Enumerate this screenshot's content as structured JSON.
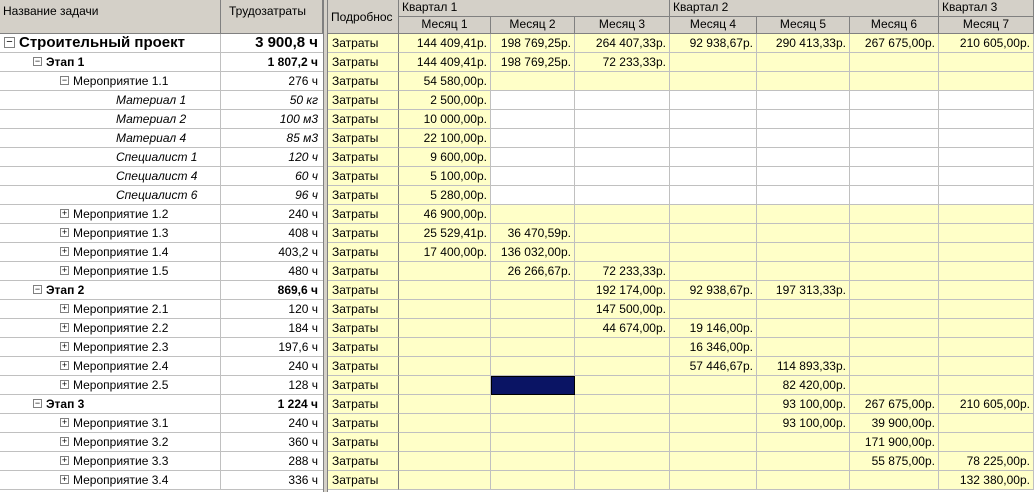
{
  "left_header": {
    "task_name": "Название задачи",
    "work": "Трудозатраты"
  },
  "right_header": {
    "details": "Подробнос",
    "quarters": [
      "Квартал 1",
      "Квартал 2",
      "Квартал 3"
    ],
    "months": [
      "Месяц 1",
      "Месяц 2",
      "Месяц 3",
      "Месяц 4",
      "Месяц 5",
      "Месяц 6",
      "Месяц 7"
    ]
  },
  "rows": [
    {
      "type": "proj",
      "toggle": "−",
      "name": "Строительный проект",
      "work": "3 900,8 ч",
      "detail": "Затраты",
      "values": [
        "144 409,41р.",
        "198 769,25р.",
        "264 407,33р.",
        "92 938,67р.",
        "290 413,33р.",
        "267 675,00р.",
        "210 605,00р."
      ]
    },
    {
      "type": "stage",
      "toggle": "−",
      "name": "Этап 1",
      "work": "1 807,2 ч",
      "detail": "Затраты",
      "values": [
        "144 409,41р.",
        "198 769,25р.",
        "72 233,33р.",
        "",
        "",
        "",
        ""
      ]
    },
    {
      "type": "act",
      "toggle": "−",
      "name": "Мероприятие 1.1",
      "work": "276 ч",
      "detail": "Затраты",
      "values": [
        "54 580,00р.",
        "",
        "",
        "",
        "",
        "",
        ""
      ]
    },
    {
      "type": "res",
      "toggle": "",
      "name": "Материал 1",
      "work": "50 кг",
      "detail": "Затраты",
      "values": [
        "2 500,00р.",
        "",
        "",
        "",
        "",
        "",
        ""
      ]
    },
    {
      "type": "res",
      "toggle": "",
      "name": "Материал 2",
      "work": "100 м3",
      "detail": "Затраты",
      "values": [
        "10 000,00р.",
        "",
        "",
        "",
        "",
        "",
        ""
      ]
    },
    {
      "type": "res",
      "toggle": "",
      "name": "Материал 4",
      "work": "85 м3",
      "detail": "Затраты",
      "values": [
        "22 100,00р.",
        "",
        "",
        "",
        "",
        "",
        ""
      ]
    },
    {
      "type": "res",
      "toggle": "",
      "name": "Специалист 1",
      "work": "120 ч",
      "detail": "Затраты",
      "values": [
        "9 600,00р.",
        "",
        "",
        "",
        "",
        "",
        ""
      ]
    },
    {
      "type": "res",
      "toggle": "",
      "name": "Специалист 4",
      "work": "60 ч",
      "detail": "Затраты",
      "values": [
        "5 100,00р.",
        "",
        "",
        "",
        "",
        "",
        ""
      ]
    },
    {
      "type": "res",
      "toggle": "",
      "name": "Специалист 6",
      "work": "96 ч",
      "detail": "Затраты",
      "values": [
        "5 280,00р.",
        "",
        "",
        "",
        "",
        "",
        ""
      ]
    },
    {
      "type": "act",
      "toggle": "+",
      "name": "Мероприятие 1.2",
      "work": "240 ч",
      "detail": "Затраты",
      "values": [
        "46 900,00р.",
        "",
        "",
        "",
        "",
        "",
        ""
      ]
    },
    {
      "type": "act",
      "toggle": "+",
      "name": "Мероприятие 1.3",
      "work": "408 ч",
      "detail": "Затраты",
      "values": [
        "25 529,41р.",
        "36 470,59р.",
        "",
        "",
        "",
        "",
        ""
      ]
    },
    {
      "type": "act",
      "toggle": "+",
      "name": "Мероприятие 1.4",
      "work": "403,2 ч",
      "detail": "Затраты",
      "values": [
        "17 400,00р.",
        "136 032,00р.",
        "",
        "",
        "",
        "",
        ""
      ]
    },
    {
      "type": "act",
      "toggle": "+",
      "name": "Мероприятие 1.5",
      "work": "480 ч",
      "detail": "Затраты",
      "values": [
        "",
        "26 266,67р.",
        "72 233,33р.",
        "",
        "",
        "",
        ""
      ]
    },
    {
      "type": "stage",
      "toggle": "−",
      "name": "Этап 2",
      "work": "869,6 ч",
      "detail": "Затраты",
      "values": [
        "",
        "",
        "192 174,00р.",
        "92 938,67р.",
        "197 313,33р.",
        "",
        ""
      ]
    },
    {
      "type": "act",
      "toggle": "+",
      "name": "Мероприятие 2.1",
      "work": "120 ч",
      "detail": "Затраты",
      "values": [
        "",
        "",
        "147 500,00р.",
        "",
        "",
        "",
        ""
      ]
    },
    {
      "type": "act",
      "toggle": "+",
      "name": "Мероприятие 2.2",
      "work": "184 ч",
      "detail": "Затраты",
      "values": [
        "",
        "",
        "44 674,00р.",
        "19 146,00р.",
        "",
        "",
        ""
      ]
    },
    {
      "type": "act",
      "toggle": "+",
      "name": "Мероприятие 2.3",
      "work": "197,6 ч",
      "detail": "Затраты",
      "values": [
        "",
        "",
        "",
        "16 346,00р.",
        "",
        "",
        ""
      ]
    },
    {
      "type": "act",
      "toggle": "+",
      "name": "Мероприятие 2.4",
      "work": "240 ч",
      "detail": "Затраты",
      "values": [
        "",
        "",
        "",
        "57 446,67р.",
        "114 893,33р.",
        "",
        ""
      ]
    },
    {
      "type": "act",
      "toggle": "+",
      "name": "Мероприятие 2.5",
      "work": "128 ч",
      "detail": "Затраты",
      "values": [
        "",
        "",
        "",
        "",
        "82 420,00р.",
        "",
        ""
      ]
    },
    {
      "type": "stage",
      "toggle": "−",
      "name": "Этап 3",
      "work": "1 224 ч",
      "detail": "Затраты",
      "values": [
        "",
        "",
        "",
        "",
        "93 100,00р.",
        "267 675,00р.",
        "210 605,00р."
      ]
    },
    {
      "type": "act",
      "toggle": "+",
      "name": "Мероприятие 3.1",
      "work": "240 ч",
      "detail": "Затраты",
      "values": [
        "",
        "",
        "",
        "",
        "93 100,00р.",
        "39 900,00р.",
        ""
      ]
    },
    {
      "type": "act",
      "toggle": "+",
      "name": "Мероприятие 3.2",
      "work": "360 ч",
      "detail": "Затраты",
      "values": [
        "",
        "",
        "",
        "",
        "",
        "171 900,00р.",
        ""
      ]
    },
    {
      "type": "act",
      "toggle": "+",
      "name": "Мероприятие 3.3",
      "work": "288 ч",
      "detail": "Затраты",
      "values": [
        "",
        "",
        "",
        "",
        "",
        "55 875,00р.",
        "78 225,00р."
      ]
    },
    {
      "type": "act",
      "toggle": "+",
      "name": "Мероприятие 3.4",
      "work": "336 ч",
      "detail": "Затраты",
      "values": [
        "",
        "",
        "",
        "",
        "",
        "",
        "132 380,00р."
      ]
    }
  ],
  "colors": {
    "header_bg": "#d4d0c8",
    "summary_bg": "#ffffc8",
    "selection": "#0a1464"
  }
}
